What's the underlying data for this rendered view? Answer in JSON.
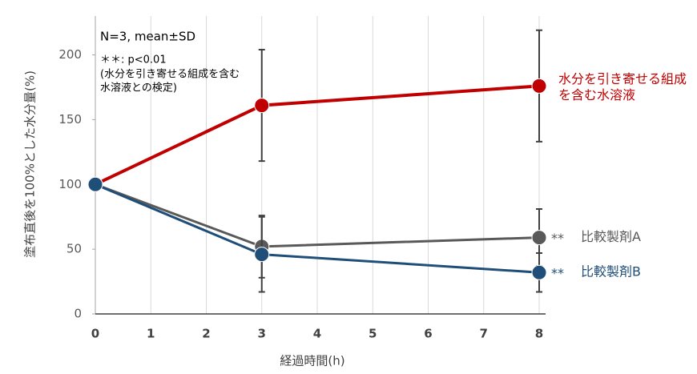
{
  "chart_data": {
    "type": "line",
    "x_label": "経過時間(h)",
    "y_label": "塗布直後を100%とした水分量(%)",
    "x": [
      0,
      3,
      8
    ],
    "xlim": [
      0,
      8
    ],
    "xticks": [
      0,
      1,
      2,
      3,
      4,
      5,
      6,
      7,
      8
    ],
    "ylim": [
      0,
      230
    ],
    "yticks": [
      0,
      50,
      100,
      150,
      200
    ],
    "grid": "x",
    "annotations": [
      "N=3, mean±SD",
      "＊＊: p<0.01",
      "(水分を引き寄せる組成を含む",
      "水溶液との検定)"
    ],
    "series": [
      {
        "label_lines": [
          "水分を引き寄せる組成",
          "を含む水溶液"
        ],
        "color": "#c00000",
        "values": [
          100,
          161,
          176
        ],
        "errors": [
          null,
          43,
          43
        ]
      },
      {
        "label_lines": [
          "比較製剤A"
        ],
        "significance": "**",
        "color": "#595959",
        "values": [
          100,
          52,
          59
        ],
        "errors": [
          null,
          24,
          22
        ]
      },
      {
        "label_lines": [
          "比較製剤B"
        ],
        "significance": "**",
        "color": "#1f4e79",
        "values": [
          100,
          46,
          32
        ],
        "errors": [
          null,
          29,
          15
        ]
      }
    ]
  }
}
